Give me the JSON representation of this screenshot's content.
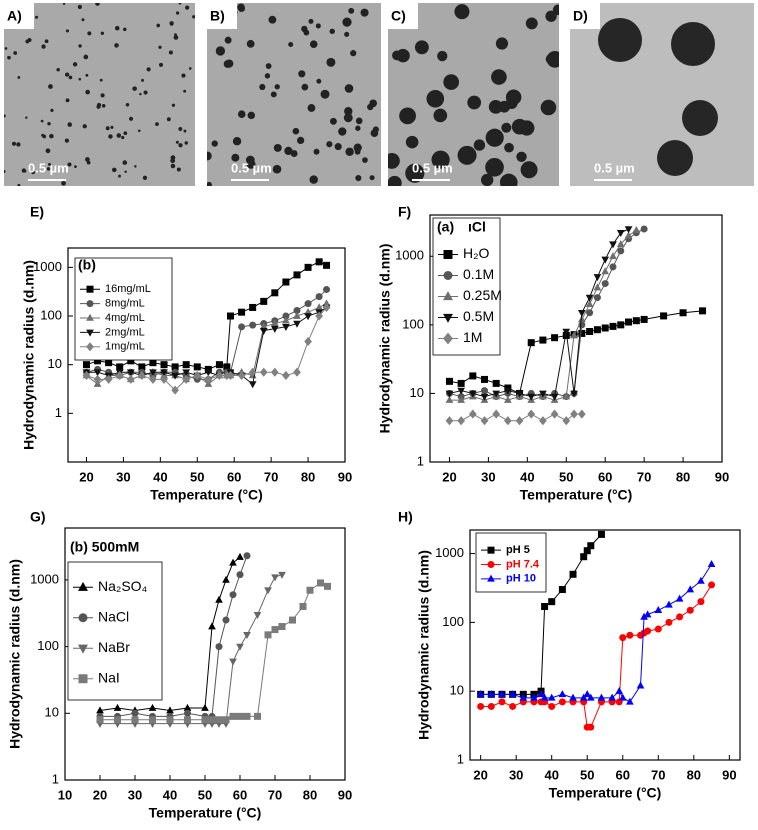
{
  "images": [
    {
      "label": "A)",
      "scale_bar": "0.5 µm"
    },
    {
      "label": "B)",
      "scale_bar": "0.5 µm"
    },
    {
      "label": "C)",
      "scale_bar": "0.5 µm"
    },
    {
      "label": "D)",
      "scale_bar": "0.5 µm"
    }
  ],
  "chart_data": [
    {
      "type": "line",
      "panel": "E)",
      "inset_label": "(b)",
      "x_label": "Temperature (°C)",
      "y_label": "Hydrodynamic radius (d.nm)",
      "log_y": true,
      "xlim": [
        15,
        90
      ],
      "ylim": [
        0.1,
        2500
      ],
      "xticks": [
        20,
        30,
        40,
        50,
        60,
        70,
        80,
        90
      ],
      "yticks": [
        1,
        10,
        100,
        1000
      ],
      "x": [
        20,
        23,
        26,
        29,
        32,
        35,
        38,
        41,
        44,
        47,
        50,
        53,
        56,
        58,
        59,
        62,
        65,
        68,
        71,
        74,
        77,
        80,
        83,
        85
      ],
      "series": [
        {
          "name": "16mg/mL",
          "color": "#000000",
          "marker": "square",
          "values": [
            10,
            12,
            11,
            9,
            12,
            9,
            11,
            10,
            9,
            10,
            9,
            8,
            10,
            9,
            100,
            120,
            150,
            200,
            300,
            500,
            700,
            1000,
            1300,
            1100
          ]
        },
        {
          "name": "8mg/mL",
          "color": "#555555",
          "marker": "circle",
          "values": [
            7,
            8,
            7,
            6,
            7,
            7,
            6,
            7,
            7,
            6,
            5,
            5,
            7,
            7,
            7,
            60,
            65,
            70,
            80,
            100,
            130,
            180,
            250,
            350
          ]
        },
        {
          "name": "4mg/mL",
          "color": "#6e6e6e",
          "marker": "triangle",
          "values": [
            6,
            4,
            6,
            6,
            5,
            6,
            7,
            6,
            6,
            5,
            6,
            4,
            6,
            6,
            6,
            7,
            6,
            60,
            70,
            80,
            100,
            120,
            150,
            180
          ]
        },
        {
          "name": "2mg/mL",
          "color": "#111111",
          "marker": "triangle-down",
          "values": [
            7,
            7,
            6,
            7,
            7,
            6,
            7,
            7,
            6,
            7,
            6,
            7,
            6,
            6,
            7,
            6,
            4,
            50,
            55,
            60,
            70,
            100,
            120,
            150
          ]
        },
        {
          "name": "1mg/mL",
          "color": "#808080",
          "marker": "diamond",
          "values": [
            6,
            5,
            5,
            6,
            5,
            6,
            5,
            5,
            3,
            5,
            6,
            5,
            6,
            6,
            6,
            6,
            7,
            7,
            7,
            6,
            7,
            30,
            100,
            150
          ]
        }
      ]
    },
    {
      "type": "line",
      "panel": "F)",
      "inset_label": "(a)",
      "inset_note": "ıCl",
      "x_label": "Temperature (°C)",
      "y_label": "Hydrodynamic radius (d.nm)",
      "log_y": true,
      "xlim": [
        15,
        90
      ],
      "ylim": [
        1,
        4000
      ],
      "xticks": [
        20,
        30,
        40,
        50,
        60,
        70,
        80,
        90
      ],
      "yticks": [
        1,
        10,
        100,
        1000
      ],
      "x": [
        20,
        23,
        26,
        29,
        32,
        35,
        38,
        41,
        44,
        47,
        50,
        52,
        54,
        56,
        58,
        60,
        62,
        64,
        66,
        68,
        70,
        75,
        80,
        85
      ],
      "series": [
        {
          "name": "H₂O",
          "color": "#000000",
          "marker": "square",
          "values": [
            15,
            14,
            18,
            16,
            14,
            12,
            10,
            55,
            60,
            65,
            70,
            72,
            75,
            80,
            85,
            90,
            95,
            100,
            110,
            115,
            120,
            135,
            150,
            160
          ]
        },
        {
          "name": "0.1M",
          "color": "#555555",
          "marker": "circle",
          "values": [
            10,
            9,
            10,
            11,
            9,
            10,
            9,
            10,
            9,
            10,
            9,
            10,
            100,
            150,
            250,
            400,
            700,
            1200,
            1800,
            2200,
            2500,
            null,
            null,
            null
          ]
        },
        {
          "name": "0.25M",
          "color": "#6e6e6e",
          "marker": "triangle",
          "values": [
            8,
            8,
            9,
            8,
            9,
            8,
            9,
            8,
            9,
            8,
            9,
            70,
            120,
            200,
            350,
            600,
            1000,
            1500,
            2000,
            2400,
            null,
            null,
            null,
            null
          ]
        },
        {
          "name": "0.5M",
          "color": "#111111",
          "marker": "triangle-down",
          "values": [
            10,
            11,
            10,
            9,
            10,
            11,
            10,
            9,
            10,
            9,
            80,
            10,
            150,
            250,
            500,
            900,
            1500,
            2200,
            2500,
            null,
            null,
            null,
            null,
            null
          ]
        },
        {
          "name": "1M",
          "color": "#808080",
          "marker": "diamond",
          "values": [
            4,
            4,
            5,
            4,
            5,
            4,
            4,
            5,
            4,
            5,
            4,
            5,
            5,
            null,
            null,
            null,
            null,
            null,
            null,
            null,
            null,
            null,
            null,
            null
          ]
        }
      ]
    },
    {
      "type": "line",
      "panel": "G)",
      "inset_label": "(b) 500mM",
      "x_label": "Temperature (°C)",
      "y_label": "Hydrodynamic radius (d.nm)",
      "log_y": true,
      "xlim": [
        10,
        90
      ],
      "ylim": [
        1,
        6000
      ],
      "xticks": [
        10,
        20,
        30,
        40,
        50,
        60,
        70,
        80,
        90
      ],
      "yticks": [
        1,
        10,
        100,
        1000
      ],
      "x": [
        20,
        25,
        30,
        35,
        40,
        45,
        50,
        52,
        54,
        56,
        58,
        60,
        62,
        65,
        68,
        70,
        72,
        75,
        78,
        80,
        83,
        85
      ],
      "series": [
        {
          "name": "Na₂SO₄",
          "color": "#000000",
          "marker": "triangle",
          "values": [
            11,
            12,
            11,
            12,
            11,
            12,
            12,
            200,
            500,
            1000,
            1800,
            2200,
            null,
            null,
            null,
            null,
            null,
            null,
            null,
            null,
            null,
            null
          ]
        },
        {
          "name": "NaCl",
          "color": "#555555",
          "marker": "circle",
          "values": [
            9,
            9,
            10,
            9,
            9,
            10,
            9,
            9,
            100,
            250,
            600,
            1200,
            2300,
            null,
            null,
            null,
            null,
            null,
            null,
            null,
            null,
            null
          ]
        },
        {
          "name": "NaBr",
          "color": "#666666",
          "marker": "triangle-down",
          "values": [
            7,
            7,
            7,
            7,
            7,
            7,
            7,
            7,
            7,
            7,
            60,
            100,
            150,
            300,
            700,
            1100,
            1200,
            null,
            null,
            null,
            null,
            null
          ]
        },
        {
          "name": "NaI",
          "color": "#7a7a7a",
          "marker": "square",
          "values": [
            8,
            8,
            8,
            8,
            8,
            8,
            8,
            8,
            8,
            8,
            9,
            9,
            9,
            9,
            150,
            180,
            200,
            250,
            400,
            700,
            900,
            800
          ]
        }
      ]
    },
    {
      "type": "line",
      "panel": "H)",
      "x_label": "Temperature (°C)",
      "y_label": "Hydrodynamic radius (d.nm)",
      "log_y": true,
      "xlim": [
        17,
        93
      ],
      "ylim": [
        1,
        2200
      ],
      "xticks": [
        20,
        30,
        40,
        50,
        60,
        70,
        80,
        90
      ],
      "yticks": [
        1,
        10,
        100,
        1000
      ],
      "x": [
        20,
        23,
        26,
        29,
        32,
        35,
        37,
        38,
        40,
        43,
        46,
        49,
        50,
        51,
        54,
        57,
        59,
        60,
        62,
        65,
        66,
        67,
        70,
        73,
        76,
        79,
        82,
        85
      ],
      "series": [
        {
          "name": "pH 5",
          "color": "#000000",
          "marker": "square",
          "values": [
            9,
            9,
            9,
            9,
            9,
            9,
            10,
            170,
            200,
            300,
            500,
            900,
            1100,
            1300,
            1900,
            null,
            null,
            null,
            null,
            null,
            null,
            null,
            null,
            null,
            null,
            null,
            null,
            null
          ]
        },
        {
          "name": "pH 7.4",
          "color": "#ff0000",
          "marker": "circle",
          "values": [
            6,
            6,
            7,
            6,
            7,
            7,
            7,
            7,
            6,
            7,
            7,
            7,
            3,
            3,
            7,
            7,
            7,
            60,
            65,
            65,
            70,
            75,
            80,
            100,
            120,
            150,
            200,
            350
          ]
        },
        {
          "name": "pH 10",
          "color": "#0000ff",
          "marker": "triangle",
          "values": [
            9,
            9,
            9,
            9,
            8,
            8,
            9,
            8,
            8,
            9,
            8,
            8,
            9,
            8,
            8,
            8,
            10,
            8,
            7,
            12,
            120,
            130,
            150,
            180,
            220,
            300,
            400,
            700
          ]
        }
      ]
    }
  ]
}
